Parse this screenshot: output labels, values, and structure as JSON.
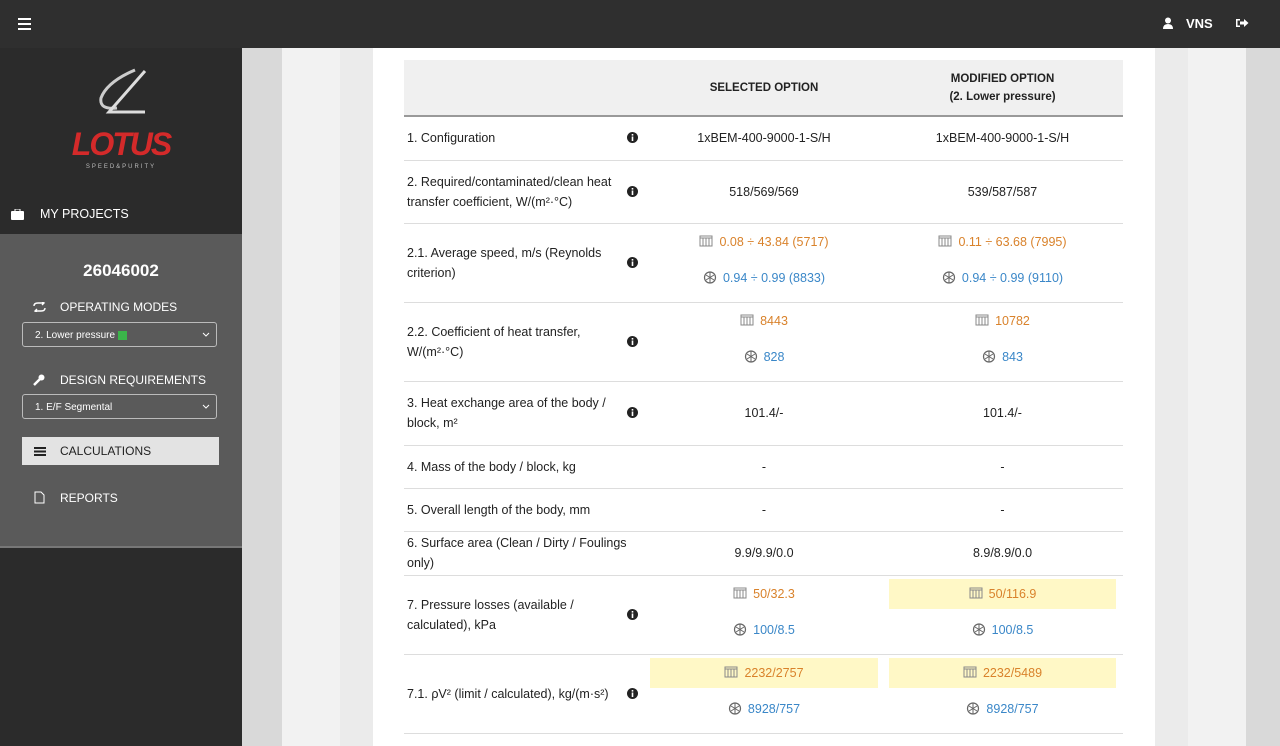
{
  "topbar": {
    "user": "VNS"
  },
  "sidebar": {
    "logo_text": "LOTUS",
    "logo_tagline": "SPEED&PURITY",
    "my_projects": "MY PROJECTS",
    "project_number": "26046002",
    "operating_modes": "OPERATING MODES",
    "operating_mode_selected": "2. Lower pressure",
    "design_requirements": "DESIGN REQUIREMENTS",
    "design_selected": "1. E/F Segmental",
    "calculations": "CALCULATIONS",
    "reports": "REPORTS"
  },
  "table": {
    "header": {
      "selected": "SELECTED OPTION",
      "modified": "MODIFIED OPTION",
      "modified_note": "(2. Lower pressure)"
    },
    "rows": [
      {
        "label": "1. Configuration",
        "info": true,
        "selected": "1xBEM-400-9000-1-S/H",
        "modified": "1xBEM-400-9000-1-S/H"
      },
      {
        "label": "2. Required/contaminated/clean heat transfer coefficient, W/(m²·°C)",
        "info": true,
        "selected": "518/569/569",
        "modified": "539/587/587"
      },
      {
        "label": "2.1. Average speed, m/s (Reynolds criterion)",
        "info": true,
        "selected": {
          "tube": "0.08 ÷ 43.84 (5717)",
          "shell": "0.94 ÷ 0.99 (8833)"
        },
        "modified": {
          "tube": "0.11 ÷ 63.68 (7995)",
          "shell": "0.94 ÷ 0.99 (9110)"
        }
      },
      {
        "label": "2.2. Coefficient of heat transfer, W/(m²·°C)",
        "info": true,
        "selected": {
          "tube": "8443",
          "shell": "828"
        },
        "modified": {
          "tube": "10782",
          "shell": "843"
        }
      },
      {
        "label": "3. Heat exchange area of the body / block, m²",
        "info": true,
        "selected": "101.4/-",
        "modified": "101.4/-"
      },
      {
        "label": "4. Mass of the body / block, kg",
        "info": false,
        "selected": "-",
        "modified": "-"
      },
      {
        "label": "5. Overall length of the body, mm",
        "info": false,
        "selected": "-",
        "modified": "-"
      },
      {
        "label": "6. Surface area (Clean / Dirty / Foulings only)",
        "info": false,
        "selected": "9.9/9.9/0.0",
        "modified": "8.9/8.9/0.0"
      },
      {
        "label": "7. Pressure losses (available / calculated), kPa",
        "info": true,
        "selected": {
          "tube": "50/32.3",
          "shell": "100/8.5"
        },
        "modified": {
          "tube": "50/116.9",
          "shell": "100/8.5"
        },
        "highlight": [
          "modified"
        ]
      },
      {
        "label": "7.1. ρV² (limit / calculated), kg/(m·s²)",
        "info": true,
        "selected": {
          "tube": "2232/2757",
          "shell": "8928/757"
        },
        "modified": {
          "tube": "2232/5489",
          "shell": "8928/757"
        },
        "highlight": [
          "selected",
          "modified"
        ]
      }
    ]
  }
}
